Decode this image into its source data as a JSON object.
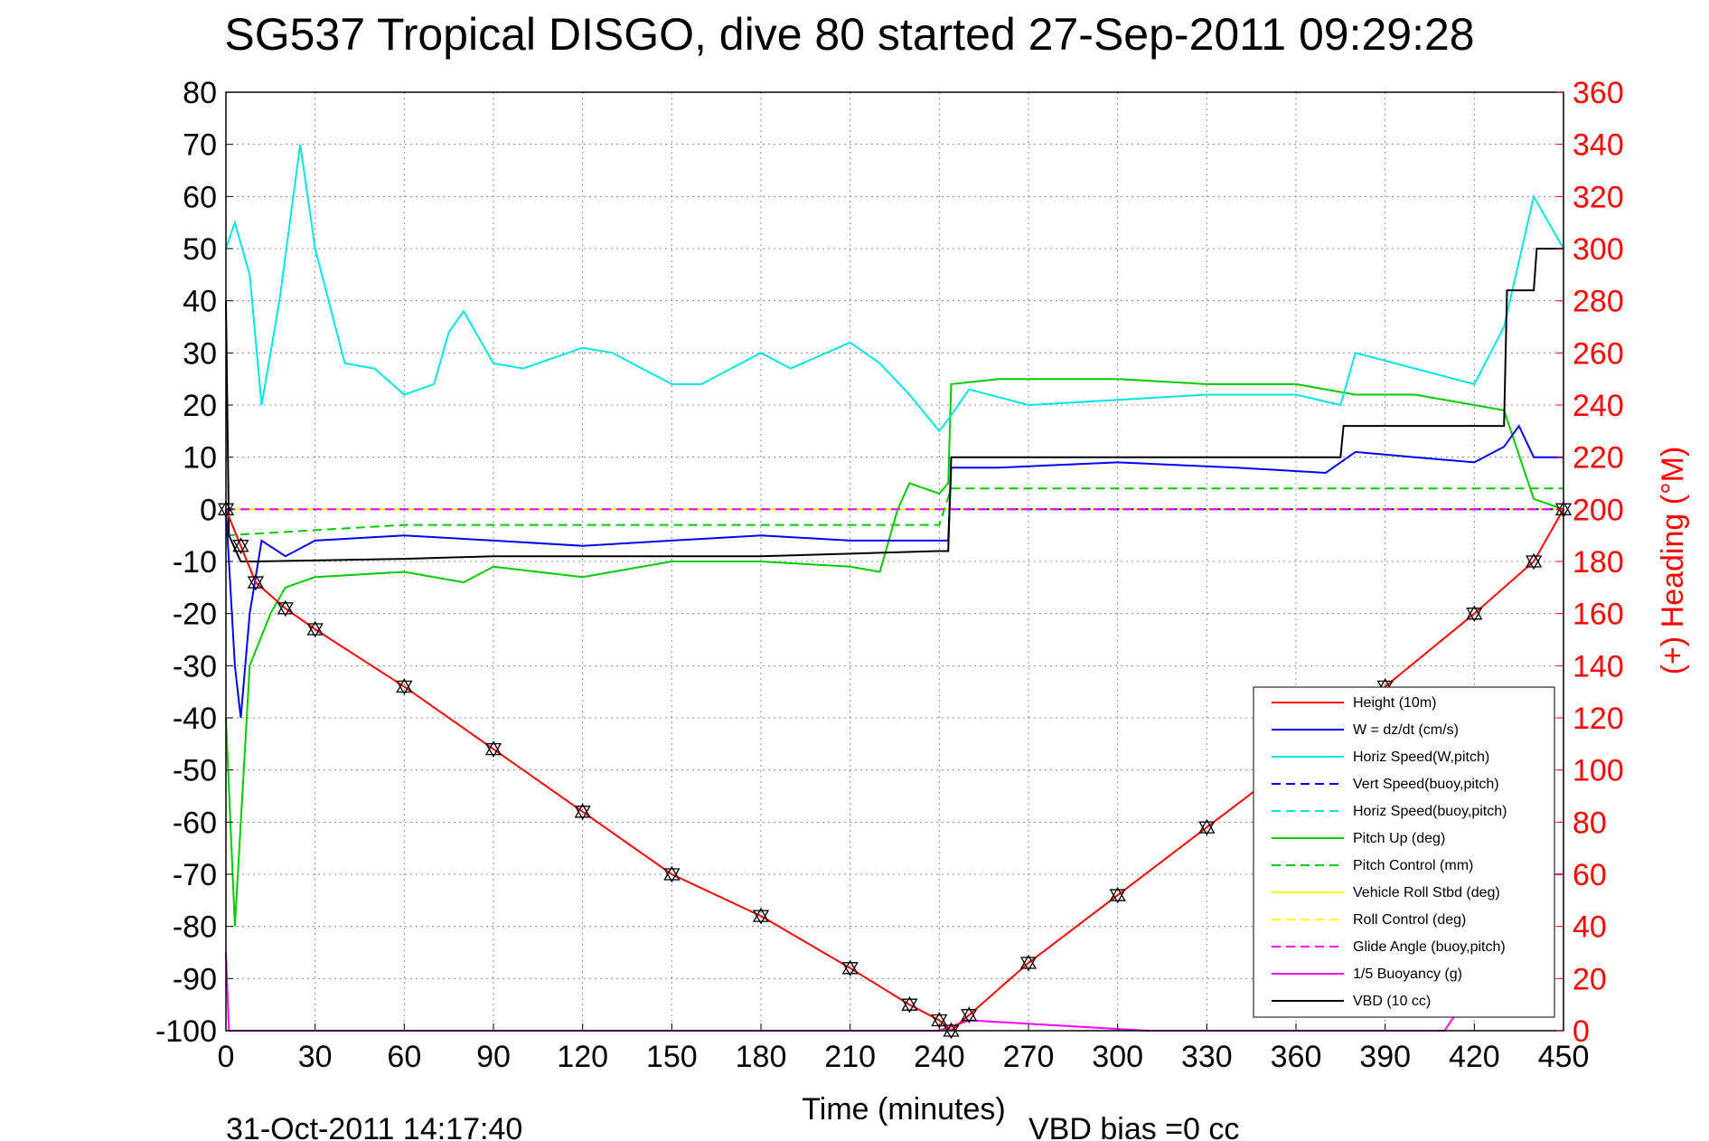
{
  "chart_data": {
    "type": "line",
    "title": "SG537 Tropical DISGO, dive 80 started 27-Sep-2011 09:29:28",
    "xlabel": "Time (minutes)",
    "ylabel_right": "(+) Heading (°M)",
    "footer_date": "31-Oct-2011 14:17:40",
    "footer_vbd": "VBD bias =0 cc",
    "xlim": [
      0,
      450
    ],
    "ylim_left": [
      -100,
      80
    ],
    "ylim_right": [
      0,
      360
    ],
    "x_ticks": [
      "0",
      "30",
      "60",
      "90",
      "120",
      "150",
      "180",
      "210",
      "240",
      "270",
      "300",
      "330",
      "360",
      "390",
      "420",
      "450"
    ],
    "y_left_ticks": [
      "80",
      "70",
      "60",
      "50",
      "40",
      "30",
      "20",
      "10",
      "0",
      "-10",
      "-20",
      "-30",
      "-40",
      "-50",
      "-60",
      "-70",
      "-80",
      "-90",
      "-100"
    ],
    "y_right_ticks": [
      "360",
      "340",
      "320",
      "300",
      "280",
      "260",
      "240",
      "220",
      "200",
      "180",
      "160",
      "140",
      "120",
      "100",
      "80",
      "60",
      "40",
      "20",
      "0"
    ],
    "grid": true,
    "legend_position": "bottom-right",
    "series": [
      {
        "name": "Height (10m)",
        "color": "#ff0000",
        "dash": "solid",
        "x": [
          0,
          5,
          10,
          20,
          30,
          60,
          90,
          120,
          150,
          180,
          210,
          230,
          240,
          244,
          250,
          270,
          300,
          330,
          360,
          390,
          420,
          440,
          450
        ],
        "y": [
          0,
          -7,
          -14,
          -19,
          -23,
          -34,
          -46,
          -58,
          -70,
          -78,
          -88,
          -95,
          -98,
          -100,
          -97,
          -87,
          -74,
          -61,
          -48,
          -34,
          -20,
          -10,
          0
        ]
      },
      {
        "name": "W = dz/dt (cm/s)",
        "color": "#0000ff",
        "dash": "solid",
        "x": [
          0,
          3,
          5,
          8,
          12,
          20,
          30,
          60,
          90,
          120,
          150,
          180,
          210,
          225,
          240,
          243,
          244,
          260,
          300,
          340,
          370,
          380,
          400,
          420,
          430,
          435,
          440,
          450
        ],
        "y": [
          0,
          -30,
          -40,
          -20,
          -6,
          -9,
          -6,
          -5,
          -6,
          -7,
          -6,
          -5,
          -6,
          -6,
          -6,
          -6,
          8,
          8,
          9,
          8,
          7,
          11,
          10,
          9,
          12,
          16,
          10,
          10
        ]
      },
      {
        "name": "Horiz Speed(W,pitch)",
        "color": "#00e5e5",
        "dash": "solid",
        "x": [
          0,
          3,
          8,
          12,
          18,
          25,
          30,
          40,
          50,
          60,
          70,
          75,
          80,
          90,
          100,
          120,
          130,
          150,
          160,
          180,
          190,
          210,
          220,
          230,
          240,
          244,
          250,
          270,
          300,
          330,
          360,
          375,
          380,
          400,
          420,
          430,
          440,
          450
        ],
        "y": [
          50,
          55,
          45,
          20,
          40,
          70,
          50,
          28,
          27,
          22,
          24,
          34,
          38,
          28,
          27,
          31,
          30,
          24,
          24,
          30,
          27,
          32,
          28,
          22,
          15,
          18,
          23,
          20,
          21,
          22,
          22,
          20,
          30,
          27,
          24,
          35,
          60,
          50
        ]
      },
      {
        "name": "Vert Speed(buoy,pitch)",
        "color": "#0000ff",
        "dash": "dashed",
        "x": [
          244,
          450
        ],
        "y": [
          0,
          0
        ]
      },
      {
        "name": "Horiz Speed(buoy,pitch)",
        "color": "#00e5e5",
        "dash": "dashed",
        "x": [
          0,
          450
        ],
        "y": [
          0,
          0
        ]
      },
      {
        "name": "Pitch Up (deg)",
        "color": "#00cc00",
        "dash": "solid",
        "x": [
          0,
          3,
          8,
          15,
          20,
          30,
          60,
          80,
          90,
          120,
          150,
          180,
          210,
          220,
          226,
          230,
          240,
          243,
          244,
          260,
          300,
          330,
          360,
          380,
          400,
          420,
          430,
          440,
          450
        ],
        "y": [
          -40,
          -80,
          -30,
          -20,
          -15,
          -13,
          -12,
          -14,
          -11,
          -13,
          -10,
          -10,
          -11,
          -12,
          0,
          5,
          3,
          5,
          24,
          25,
          25,
          24,
          24,
          22,
          22,
          20,
          19,
          2,
          0
        ]
      },
      {
        "name": "Pitch Control (mm)",
        "color": "#00cc00",
        "dash": "dashed",
        "x": [
          0,
          30,
          60,
          90,
          120,
          150,
          180,
          210,
          240,
          244,
          300,
          360,
          390,
          420,
          450
        ],
        "y": [
          -5,
          -4,
          -3,
          -3,
          -3,
          -3,
          -3,
          -3,
          -3,
          4,
          4,
          4,
          4,
          4,
          4
        ]
      },
      {
        "name": "Vehicle Roll Stbd (deg)",
        "color": "#ffff00",
        "dash": "solid",
        "x": [
          0,
          30,
          60,
          90,
          120,
          150,
          180,
          210,
          240,
          270,
          300,
          330,
          360,
          390,
          420,
          450
        ],
        "y": [
          0,
          0,
          0,
          0,
          0,
          0,
          0,
          0,
          0,
          0,
          0,
          0,
          0,
          0,
          0,
          0
        ]
      },
      {
        "name": "Roll Control (deg)",
        "color": "#ffff00",
        "dash": "dashed",
        "x": [
          0,
          450
        ],
        "y": [
          0,
          0
        ]
      },
      {
        "name": "Glide Angle (buoy,pitch)",
        "color": "#ff00ff",
        "dash": "dashed",
        "x": [
          0,
          450
        ],
        "y": [
          0,
          0
        ]
      },
      {
        "name": "1/5 Buoyancy (g)",
        "color": "#ff00ff",
        "dash": "solid",
        "x": [
          0,
          1,
          240,
          250,
          280,
          310,
          330,
          400,
          410,
          445,
          448,
          450
        ],
        "y": [
          -85,
          -100,
          -100,
          -98,
          -99,
          -100,
          -100,
          -100,
          -100,
          -70,
          -70,
          -70
        ]
      },
      {
        "name": "VBD (10 cc)",
        "color": "#000000",
        "dash": "solid",
        "x": [
          0,
          1,
          5,
          10,
          60,
          90,
          120,
          150,
          180,
          210,
          240,
          243,
          244,
          300,
          375,
          376,
          420,
          430,
          431,
          440,
          441,
          450
        ],
        "y": [
          40,
          -5,
          -10,
          -10,
          -9.5,
          -9,
          -9,
          -9,
          -9,
          -8.5,
          -8,
          -8,
          10,
          10,
          10,
          16,
          16,
          16,
          42,
          42,
          50,
          50
        ]
      }
    ]
  }
}
